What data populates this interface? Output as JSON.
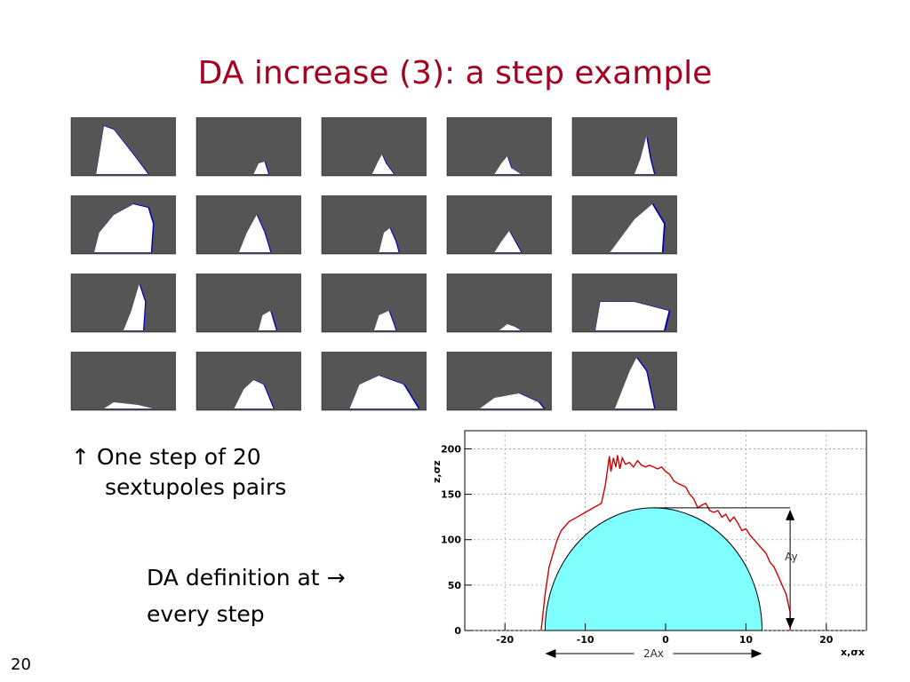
{
  "slide": {
    "title": "DA increase (3): a step example",
    "caption_line1": "One step of 20",
    "caption_line2": "sextupoles pairs",
    "caption_arrow": "↑",
    "definition_line1": "DA definition at",
    "definition_arrow": "→",
    "definition_line2": "every step",
    "page_number": "20"
  },
  "panel_grid": {
    "rows": 4,
    "cols": 5,
    "count": 20
  },
  "chart_data": {
    "type": "area",
    "title": "",
    "xlabel": "x,σx",
    "ylabel": "z,σz",
    "xlim": [
      -25,
      25
    ],
    "ylim": [
      0,
      220
    ],
    "x_ticks": [
      "-20",
      "-10",
      "0",
      "10",
      "20"
    ],
    "y_ticks": [
      "0",
      "50",
      "100",
      "150",
      "200"
    ],
    "grid": true,
    "series": [
      {
        "kind": "dynamic-aperture boundary",
        "color": "#d00000",
        "x": [
          -15.5,
          -15,
          -14.5,
          -14,
          -13.5,
          -13,
          -12.5,
          -12,
          -11,
          -10,
          -9,
          -8,
          -7.5,
          -7,
          -6.8,
          -6.5,
          -6.2,
          -6,
          -5.7,
          -5.4,
          -5,
          -4.5,
          -4,
          -3.5,
          -3,
          -2.5,
          -2,
          -1.5,
          -1,
          -0.5,
          0,
          0.5,
          1,
          1.5,
          2,
          2.5,
          3,
          3.5,
          4,
          4.5,
          5,
          5.5,
          6,
          6.5,
          7,
          7.5,
          8,
          8.5,
          9,
          9.5,
          10,
          10.5,
          11,
          11.5,
          12,
          12.5,
          13,
          13.5,
          14,
          14.5,
          15,
          15.5,
          15.5
        ],
        "y": [
          0,
          40,
          70,
          85,
          100,
          110,
          115,
          120,
          125,
          130,
          135,
          140,
          160,
          192,
          175,
          190,
          180,
          193,
          178,
          190,
          183,
          185,
          180,
          187,
          182,
          180,
          182,
          180,
          178,
          180,
          175,
          172,
          165,
          162,
          160,
          158,
          150,
          145,
          135,
          138,
          140,
          132,
          130,
          132,
          125,
          128,
          120,
          125,
          118,
          110,
          112,
          105,
          100,
          95,
          90,
          85,
          75,
          70,
          60,
          50,
          40,
          20,
          0
        ]
      },
      {
        "kind": "fitted half-ellipse",
        "color": "#80ffff",
        "center_x": -1.5,
        "semi_axis_x": 13.5,
        "semi_axis_y": 135
      }
    ],
    "annotations": {
      "height_label": "Ay",
      "width_label": "2Ax"
    }
  }
}
